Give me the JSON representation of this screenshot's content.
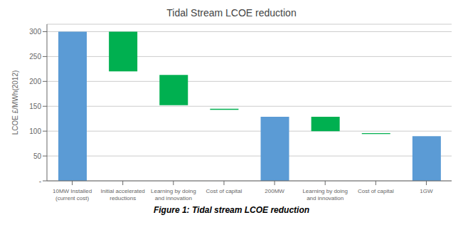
{
  "chart_data": {
    "type": "bar",
    "title": "Tidal Stream LCOE reduction",
    "ylabel": "LCOE £/MWh(2012)",
    "caption": "Figure 1: Tidal stream LCOE reduction",
    "categories": [
      "10MW Installed\n(current cost)",
      "Initial accelerated\nreductions",
      "Learning by doing\nand innovation",
      "Cost of capital",
      "200MW",
      "Learning by doing\nand innovation",
      "Cost of capital",
      "1GW"
    ],
    "bottoms": [
      0,
      220,
      152,
      143,
      0,
      100,
      94,
      0
    ],
    "values": [
      300,
      300,
      213,
      145,
      129,
      129,
      96,
      90
    ],
    "colors": [
      "#5b9bd5",
      "#00b050",
      "#00b050",
      "#00b050",
      "#5b9bd5",
      "#00b050",
      "#00b050",
      "#5b9bd5"
    ],
    "ylim": [
      0,
      315
    ],
    "yticks": [
      {
        "value": 0,
        "label": "-"
      },
      50,
      100,
      150,
      200,
      250,
      300
    ],
    "grid": true
  }
}
